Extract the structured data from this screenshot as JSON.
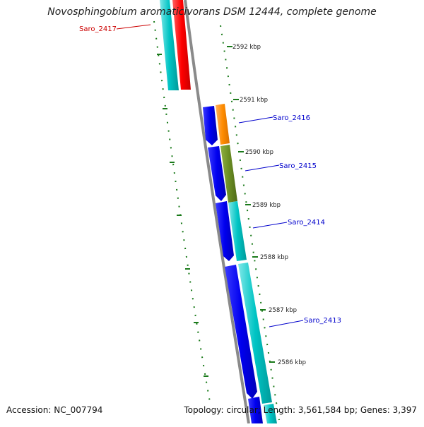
{
  "title": "Novosphingobium aromaticivorans DSM 12444, complete genome",
  "footer": {
    "accession": "Accession: NC_007794",
    "topology": "Topology: circular; Length: 3,561,584 bp; Genes: 3,397"
  },
  "colors": {
    "forward_gene": "#00bfbf",
    "reverse_gene": "#0000ee",
    "highlight_red": "#ff0000",
    "highlight_orange": "#ff8c00",
    "highlight_olive": "#6b8e23",
    "ticks": "#1a7a1a",
    "backbone": "#888888",
    "label_red": "#cc0000",
    "label_blue": "#0000cc"
  },
  "ticks": [
    "2592 kbp",
    "2591 kbp",
    "2590 kbp",
    "2589 kbp",
    "2588 kbp",
    "2587 kbp",
    "2586 kbp"
  ],
  "gene_labels": [
    {
      "name": "Saro_2417",
      "color": "label_red"
    },
    {
      "name": "Saro_2416",
      "color": "label_blue"
    },
    {
      "name": "Saro_2415",
      "color": "label_blue"
    },
    {
      "name": "Saro_2414",
      "color": "label_blue"
    },
    {
      "name": "Saro_2413",
      "color": "label_blue"
    }
  ]
}
